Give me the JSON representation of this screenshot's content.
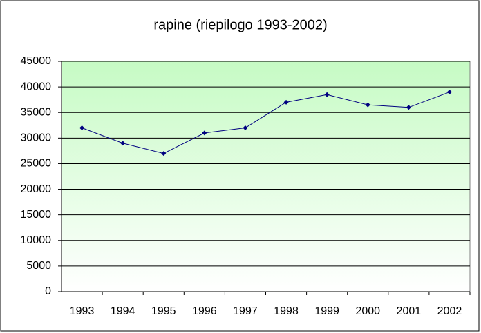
{
  "chart_data": {
    "type": "line",
    "title": "rapine (riepilogo 1993-2002)",
    "categories": [
      "1993",
      "1994",
      "1995",
      "1996",
      "1997",
      "1998",
      "1999",
      "2000",
      "2001",
      "2002"
    ],
    "series": [
      {
        "name": "rapine",
        "color": "#000080",
        "values": [
          32000,
          29000,
          27000,
          31000,
          32000,
          37000,
          38500,
          36500,
          36000,
          39000
        ]
      }
    ],
    "ylim": [
      0,
      45000
    ],
    "yticks": [
      0,
      5000,
      10000,
      15000,
      20000,
      25000,
      30000,
      35000,
      40000,
      45000
    ],
    "grid": true
  }
}
